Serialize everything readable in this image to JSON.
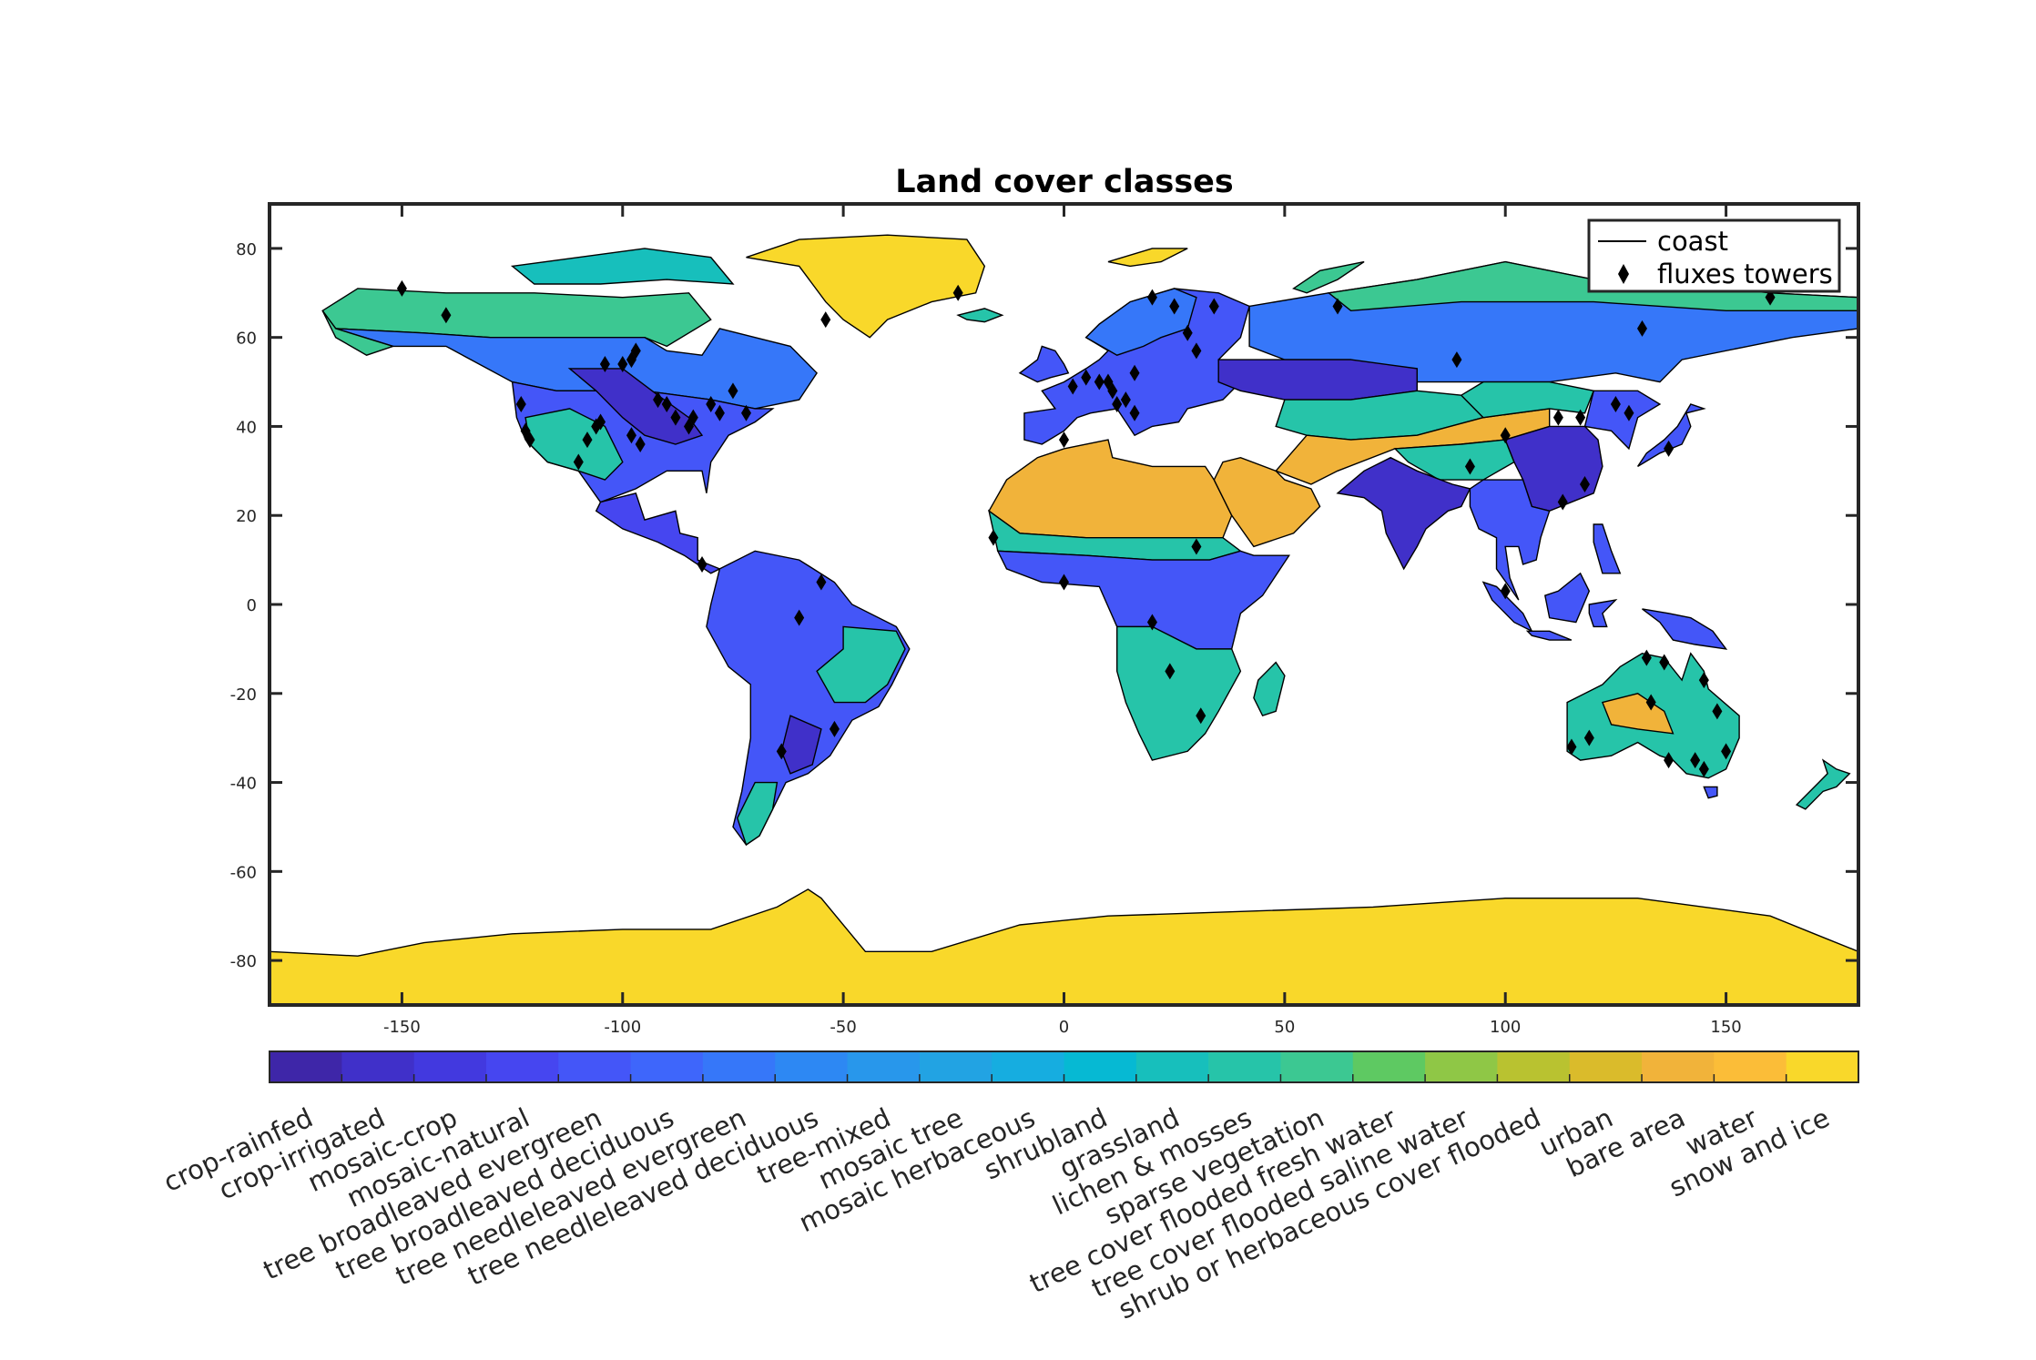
{
  "chart_data": {
    "type": "heatmap",
    "title": "Land cover classes",
    "xlabel": "",
    "ylabel": "",
    "xlim": [
      -180,
      180
    ],
    "ylim": [
      -90,
      90
    ],
    "xticks": [
      -150,
      -100,
      -50,
      0,
      50,
      100,
      150
    ],
    "yticks": [
      -80,
      -60,
      -40,
      -20,
      0,
      20,
      40,
      60,
      80
    ],
    "legend": {
      "placement": "top-right",
      "entries": [
        "coast",
        "fluxes towers"
      ]
    },
    "colorbar": {
      "placement": "bottom",
      "classes": [
        {
          "label": "crop-rainfed",
          "color": "#3e26a8"
        },
        {
          "label": "crop-irrigated",
          "color": "#4030c9"
        },
        {
          "label": "mosaic-crop",
          "color": "#4239df"
        },
        {
          "label": "mosaic-natural",
          "color": "#4646f0"
        },
        {
          "label": "tree broadleaved evergreen",
          "color": "#4456f8"
        },
        {
          "label": "tree broadleaved deciduous",
          "color": "#3e66fb"
        },
        {
          "label": "tree needleleaved evergreen",
          "color": "#3677f9"
        },
        {
          "label": "tree needleleaved deciduous",
          "color": "#2d88f3"
        },
        {
          "label": "tree-mixed",
          "color": "#2897eb"
        },
        {
          "label": "mosaic tree",
          "color": "#22a3e3"
        },
        {
          "label": "mosaic herbaceous",
          "color": "#16ade0"
        },
        {
          "label": "shrubland",
          "color": "#06b9d3"
        },
        {
          "label": "grassland",
          "color": "#17bfbc"
        },
        {
          "label": "lichen & mosses",
          "color": "#26c4a9"
        },
        {
          "label": "sparse vegetation",
          "color": "#3cc892"
        },
        {
          "label": "tree cover flooded fresh water",
          "color": "#5ec962"
        },
        {
          "label": "tree cover flooded saline water",
          "color": "#8fc746"
        },
        {
          "label": "shrub or herbaceous cover flooded",
          "color": "#b9c230"
        },
        {
          "label": "urban",
          "color": "#dabb2b"
        },
        {
          "label": "bare area",
          "color": "#f1b33a"
        },
        {
          "label": "water",
          "color": "#fbbd38"
        },
        {
          "label": "snow and ice",
          "color": "#f9d82a"
        }
      ]
    },
    "towers": [
      [
        -150,
        71
      ],
      [
        -140,
        65
      ],
      [
        -123,
        45
      ],
      [
        -122,
        39
      ],
      [
        -121,
        37
      ],
      [
        -110,
        32
      ],
      [
        -108,
        37
      ],
      [
        -106,
        40
      ],
      [
        -105,
        41
      ],
      [
        -104,
        54
      ],
      [
        -100,
        54
      ],
      [
        -98,
        55
      ],
      [
        -97,
        57
      ],
      [
        -98,
        38
      ],
      [
        -96,
        36
      ],
      [
        -92,
        46
      ],
      [
        -90,
        45
      ],
      [
        -88,
        42
      ],
      [
        -85,
        40
      ],
      [
        -84,
        42
      ],
      [
        -80,
        45
      ],
      [
        -78,
        43
      ],
      [
        -75,
        48
      ],
      [
        -72,
        43
      ],
      [
        -82,
        9
      ],
      [
        -60,
        -3
      ],
      [
        -55,
        5
      ],
      [
        -52,
        -28
      ],
      [
        -64,
        -33
      ],
      [
        -54,
        64
      ],
      [
        -24,
        70
      ],
      [
        -16,
        15
      ],
      [
        0,
        37
      ],
      [
        2,
        49
      ],
      [
        5,
        51
      ],
      [
        8,
        50
      ],
      [
        11,
        48
      ],
      [
        14,
        46
      ],
      [
        16,
        52
      ],
      [
        20,
        69
      ],
      [
        25,
        67
      ],
      [
        28,
        61
      ],
      [
        30,
        57
      ],
      [
        34,
        67
      ],
      [
        0,
        5
      ],
      [
        10,
        50
      ],
      [
        12,
        45
      ],
      [
        16,
        43
      ],
      [
        20,
        -4
      ],
      [
        24,
        -15
      ],
      [
        31,
        -25
      ],
      [
        30,
        13
      ],
      [
        62,
        67
      ],
      [
        89,
        55
      ],
      [
        92,
        31
      ],
      [
        100,
        38
      ],
      [
        100,
        3
      ],
      [
        112,
        42
      ],
      [
        113,
        23
      ],
      [
        117,
        42
      ],
      [
        118,
        27
      ],
      [
        125,
        45
      ],
      [
        131,
        62
      ],
      [
        128,
        43
      ],
      [
        137,
        35
      ],
      [
        132,
        -12
      ],
      [
        133,
        -22
      ],
      [
        136,
        -13
      ],
      [
        145,
        -17
      ],
      [
        148,
        -24
      ],
      [
        150,
        -33
      ],
      [
        145,
        -37
      ],
      [
        143,
        -35
      ],
      [
        137,
        -35
      ],
      [
        115,
        -32
      ],
      [
        119,
        -30
      ],
      [
        160,
        69
      ]
    ]
  }
}
